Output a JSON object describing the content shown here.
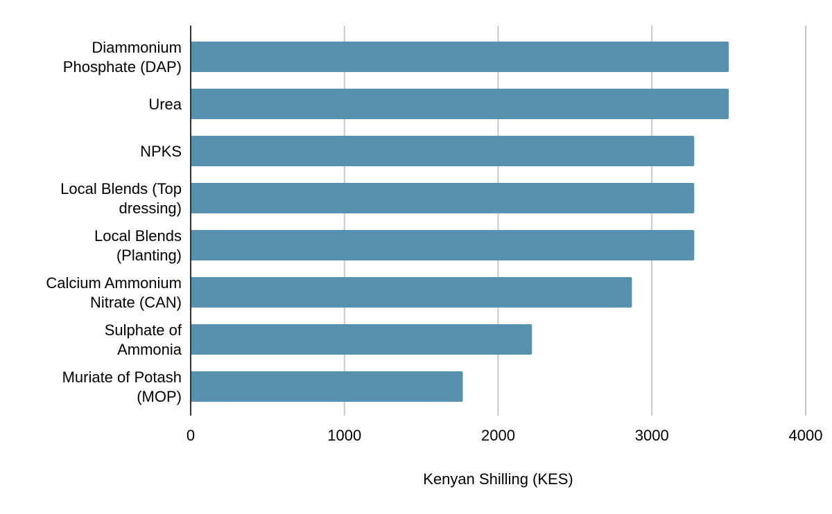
{
  "chart_data": {
    "type": "bar",
    "orientation": "horizontal",
    "categories": [
      [
        "Diammonium",
        "Phosphate (DAP)"
      ],
      [
        "Urea"
      ],
      [
        "NPKS"
      ],
      [
        "Local Blends (Top",
        "dressing)"
      ],
      [
        "Local Blends",
        "(Planting)"
      ],
      [
        "Calcium Ammonium",
        "Nitrate (CAN)"
      ],
      [
        "Sulphate of",
        "Ammonia"
      ],
      [
        "Muriate of Potash",
        "(MOP)"
      ]
    ],
    "values": [
      3500,
      3500,
      3275,
      3275,
      3275,
      2870,
      2220,
      1770
    ],
    "xlabel": "Kenyan Shilling (KES)",
    "xlim": [
      0,
      4000
    ],
    "xticks": [
      "0",
      "1000",
      "2000",
      "3000",
      "4000"
    ],
    "bar_color": "#5891ad",
    "grid": "vertical",
    "legend": "none"
  }
}
